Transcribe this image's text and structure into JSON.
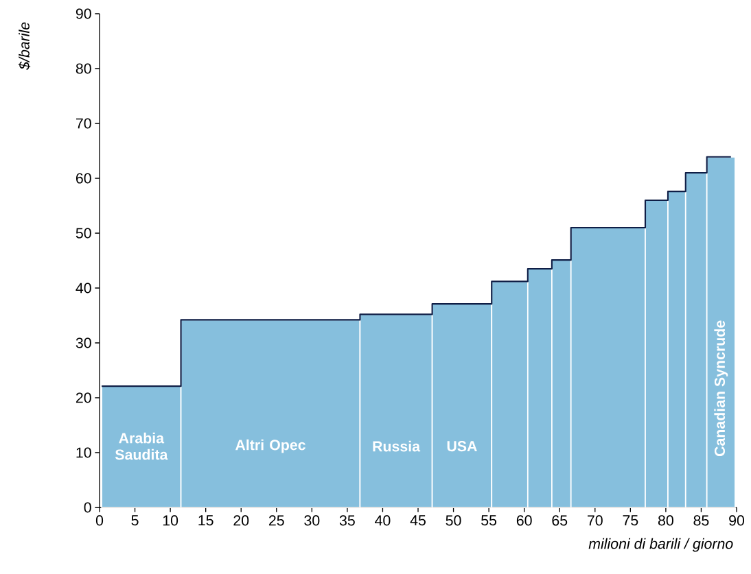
{
  "chart_data": {
    "type": "histogram",
    "xlabel": "milioni di barili / giorno",
    "ylabel": "$/barile",
    "bins": [
      0.3,
      11.5,
      36.8,
      47,
      55.4,
      60.5,
      63.9,
      66.6,
      77.1,
      80.3,
      82.8,
      85.8,
      89.8
    ],
    "series": [
      {
        "color": "#86bfdd",
        "values": [
          22.1,
          34.2,
          35.2,
          37.1,
          41.2,
          43.5,
          45.1,
          51,
          56,
          57.6,
          61,
          63.9
        ],
        "value_labels": [
          "Arabia Saudita",
          "Altri Opec",
          "Russia",
          "USA",
          null,
          null,
          null,
          null,
          null,
          null,
          null,
          "Canadian Syncrude"
        ]
      },
      {
        "type": "step",
        "color": "#0f1e46",
        "x": [
          0.3,
          11.5,
          36.8,
          47,
          55.4,
          60.5,
          63.9,
          66.6,
          77.1,
          80.3,
          82.8,
          85.8,
          89.2
        ],
        "values": [
          22.1,
          34.2,
          35.2,
          37.1,
          41.2,
          43.5,
          45.1,
          51,
          56,
          57.6,
          61,
          63.9,
          63.9
        ]
      }
    ],
    "xlim": [
      0,
      90
    ],
    "ylim": [
      0,
      90
    ],
    "xticks": [
      0,
      5,
      10,
      15,
      20,
      25,
      30,
      35,
      40,
      45,
      50,
      55,
      60,
      65,
      70,
      75,
      80,
      85,
      90
    ],
    "yticks": [
      0,
      10,
      20,
      30,
      40,
      50,
      60,
      70,
      80,
      90
    ],
    "tick_labels": true
  }
}
